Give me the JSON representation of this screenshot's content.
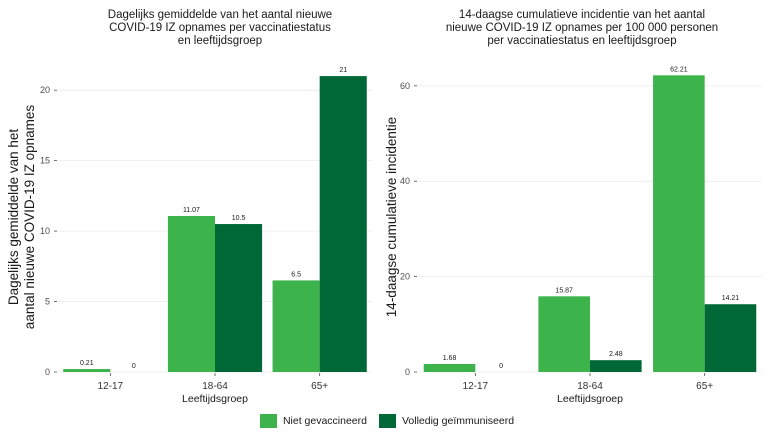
{
  "colors": {
    "niet": "#3cb44b",
    "volledig": "#006837"
  },
  "legend": [
    {
      "label": "Niet gevaccineerd",
      "color": "#3cb44b"
    },
    {
      "label": "Volledig geïmmuniseerd",
      "color": "#006837"
    }
  ],
  "chart_data": [
    {
      "type": "bar",
      "title": [
        "Dagelijks gemiddelde van het aantal nieuwe",
        "COVID-19 IZ opnames per vaccinatiestatus",
        "en leeftijdsgroep"
      ],
      "ylabel": [
        "Dagelijks gemiddelde van het",
        "aantal nieuwe COVID-19 IZ opnames"
      ],
      "xlabel": "Leeftijdsgroep",
      "categories": [
        "12-17",
        "18-64",
        "65+"
      ],
      "series": [
        {
          "name": "Niet gevaccineerd",
          "values": [
            0.21,
            11.07,
            6.5
          ],
          "labels": [
            "0.21",
            "11.07",
            "6.5"
          ]
        },
        {
          "name": "Volledig geïmmuniseerd",
          "values": [
            0,
            10.5,
            21
          ],
          "labels": [
            "0",
            "10.5",
            "21"
          ]
        }
      ],
      "ylim": [
        0,
        22
      ],
      "yticks": [
        0,
        5,
        10,
        15,
        20
      ],
      "grid": true,
      "legend_position": "bottom"
    },
    {
      "type": "bar",
      "title": [
        "14-daagse cumulatieve incidentie van het aantal",
        "nieuwe COVID-19 IZ opnames per 100 000 personen",
        "per vaccinatiestatus en leeftijdsgroep"
      ],
      "ylabel": [
        "14-daagse cumulatieve incidentie"
      ],
      "xlabel": "Leeftijdsgroep",
      "categories": [
        "12-17",
        "18-64",
        "65+"
      ],
      "series": [
        {
          "name": "Niet gevaccineerd",
          "values": [
            1.68,
            15.87,
            62.21
          ],
          "labels": [
            "1.68",
            "15.87",
            "62.21"
          ]
        },
        {
          "name": "Volledig geïmmuniseerd",
          "values": [
            0,
            2.48,
            14.21
          ],
          "labels": [
            "0",
            "2.48",
            "14.21"
          ]
        }
      ],
      "ylim": [
        0,
        65
      ],
      "yticks": [
        0,
        20,
        40,
        60
      ],
      "grid": true,
      "legend_position": "bottom"
    }
  ]
}
